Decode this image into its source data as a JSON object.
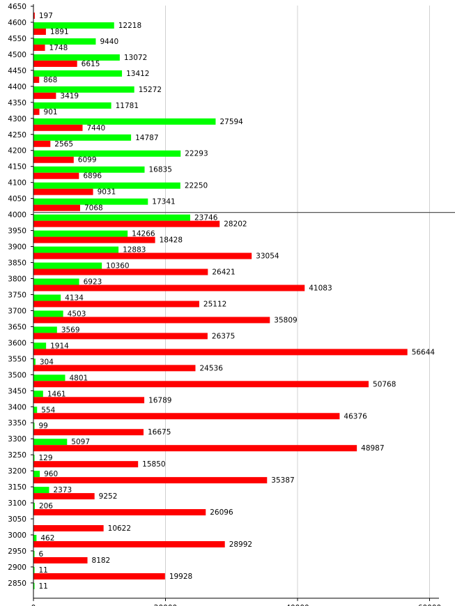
{
  "chart_data": {
    "type": "bar",
    "orientation": "horizontal",
    "title": "",
    "xlabel": "",
    "ylabel": "",
    "xlim": [
      0,
      63000
    ],
    "x_ticks": [
      0,
      20000,
      40000,
      60000
    ],
    "x_tick_labels": [
      "0",
      "20000",
      "40000",
      "60000"
    ],
    "grid": "vertical",
    "reference_line_category": "4000",
    "categories": [
      "4650",
      "4600",
      "4550",
      "4500",
      "4450",
      "4400",
      "4350",
      "4300",
      "4250",
      "4200",
      "4150",
      "4100",
      "4050",
      "4000",
      "3950",
      "3900",
      "3850",
      "3800",
      "3750",
      "3700",
      "3650",
      "3600",
      "3550",
      "3500",
      "3450",
      "3400",
      "3350",
      "3300",
      "3250",
      "3200",
      "3150",
      "3100",
      "3050",
      "3000",
      "2950",
      "2900",
      "2850"
    ],
    "series": [
      {
        "color": "#00ff00",
        "values": [
          null,
          12218,
          9440,
          13072,
          13412,
          15272,
          11781,
          27594,
          14787,
          22293,
          16835,
          22250,
          17341,
          23746,
          14266,
          12883,
          10360,
          6923,
          4134,
          4503,
          3569,
          1914,
          304,
          4801,
          1461,
          554,
          99,
          5097,
          129,
          960,
          2373,
          206,
          null,
          462,
          6,
          11,
          11
        ]
      },
      {
        "color": "#ff0000",
        "values": [
          197,
          1891,
          1748,
          6615,
          868,
          3419,
          901,
          7440,
          2565,
          6099,
          6896,
          9031,
          7068,
          28202,
          18428,
          33054,
          26421,
          41083,
          25112,
          35809,
          26375,
          56644,
          24536,
          50768,
          16789,
          46376,
          16675,
          48987,
          15850,
          35387,
          9252,
          26096,
          10622,
          28992,
          8182,
          19928,
          null
        ]
      }
    ]
  }
}
